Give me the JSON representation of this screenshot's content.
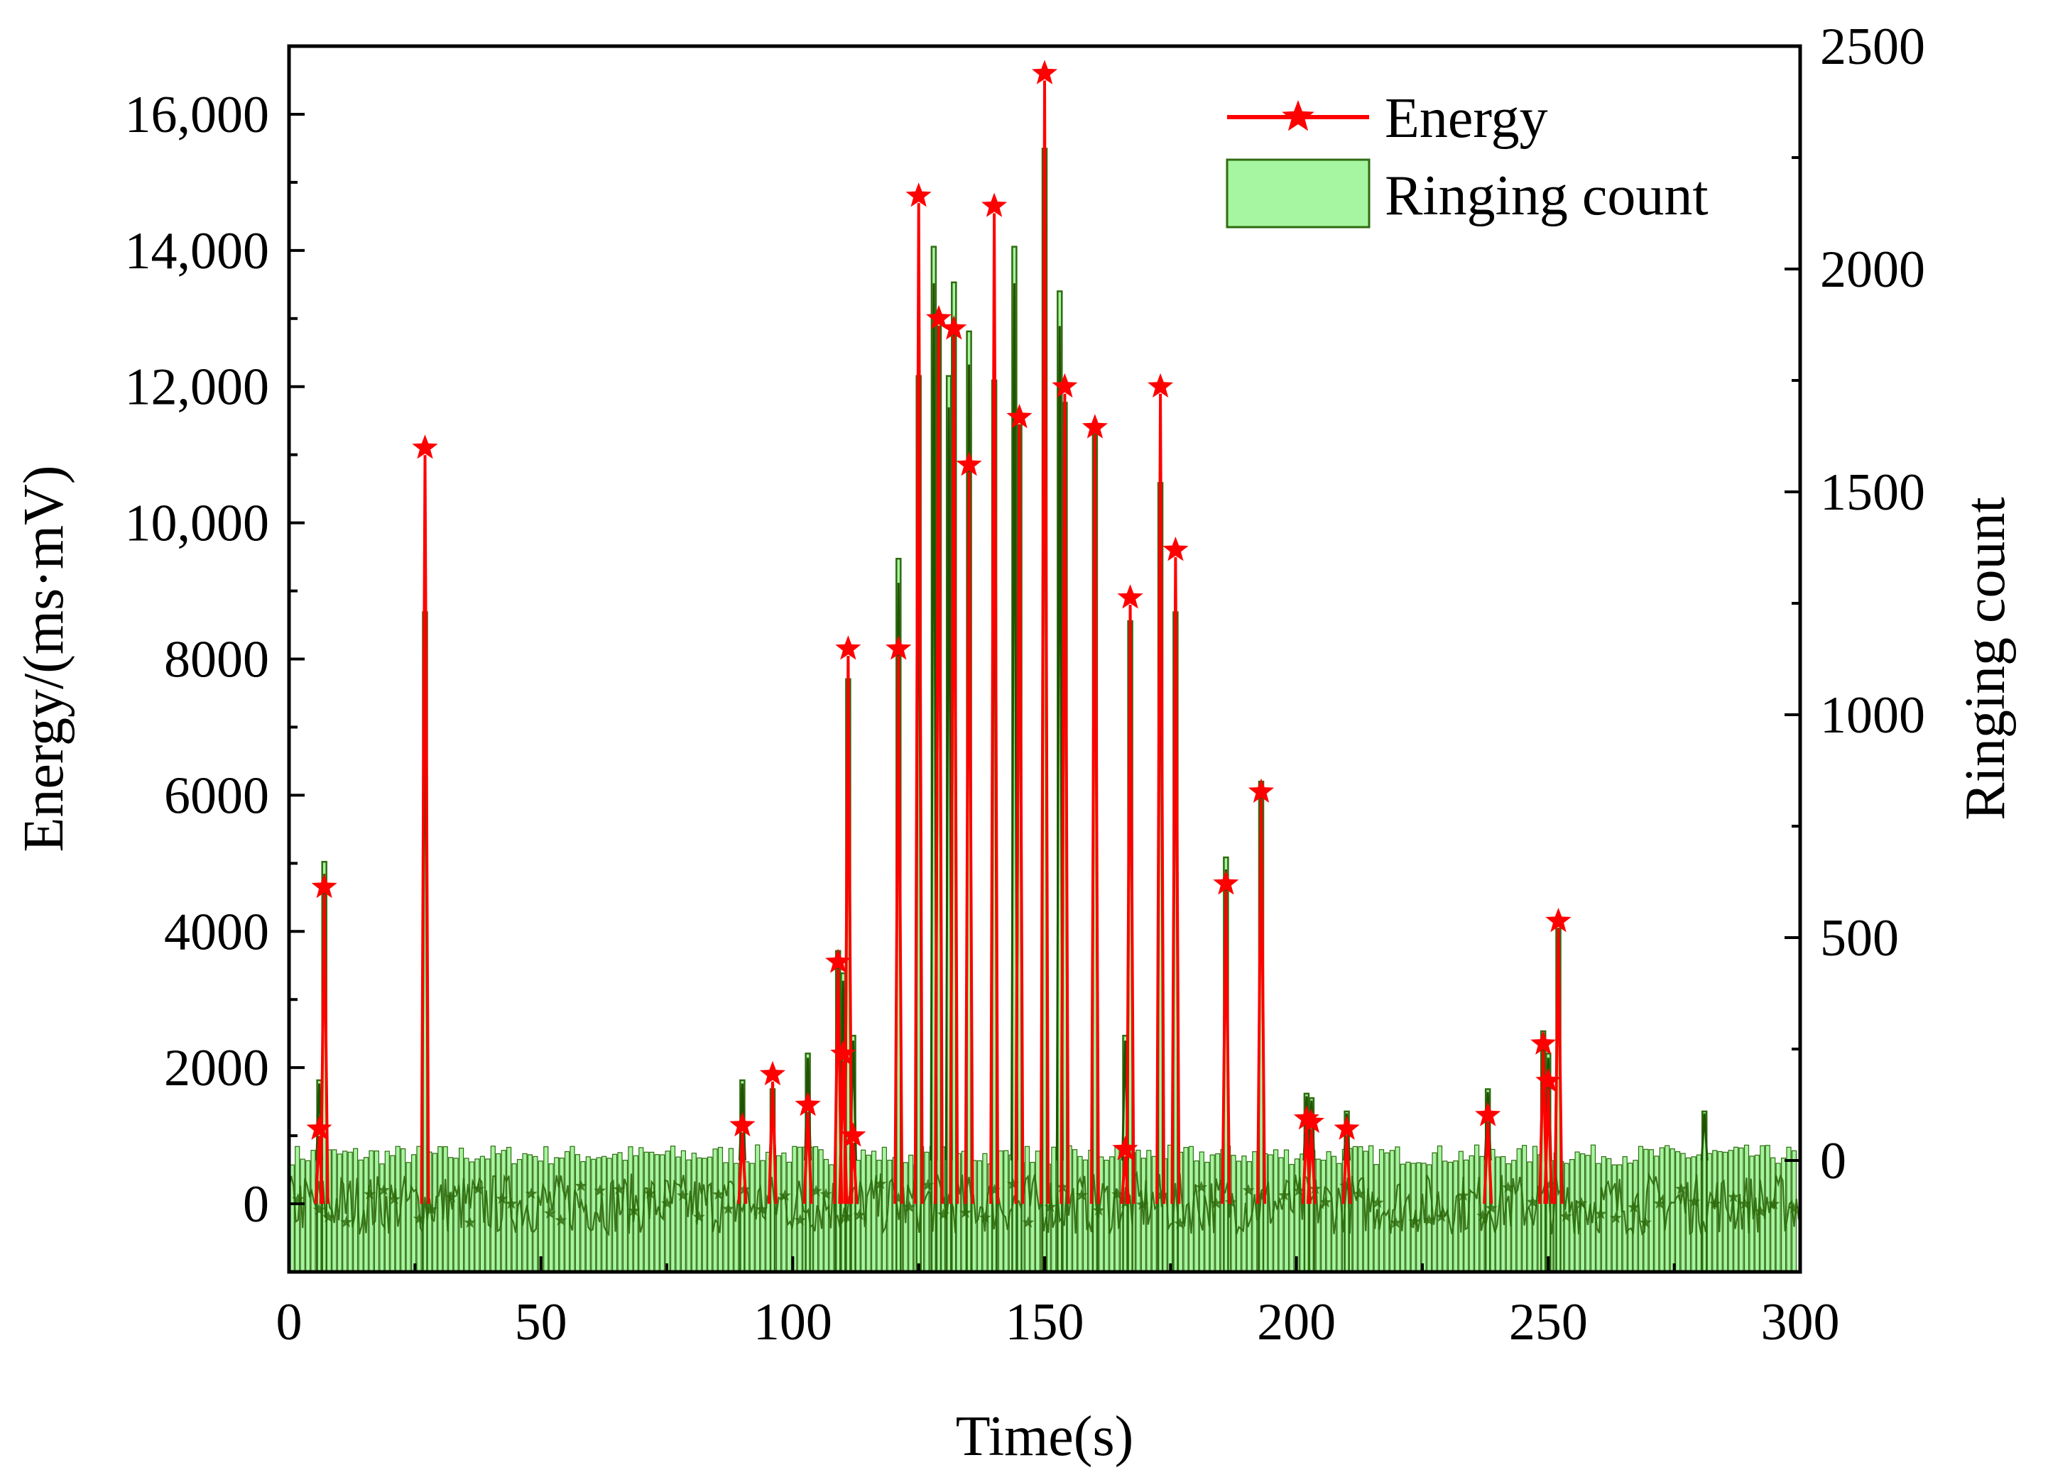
{
  "chart_data": {
    "type": "line+bar",
    "xlabel": "Time(s)",
    "ylabel_left": "Energy/(ms·mV)",
    "ylabel_right": "Ringing count",
    "xlim": [
      0,
      300
    ],
    "ylim_left": [
      -1000,
      17000
    ],
    "ylim_right": [
      -250,
      2500
    ],
    "x_ticks": [
      0,
      50,
      100,
      150,
      200,
      250,
      300
    ],
    "x_tick_labels": [
      "0",
      "50",
      "100",
      "150",
      "200",
      "250",
      "300"
    ],
    "y_left_ticks": [
      0,
      2000,
      4000,
      6000,
      8000,
      10000,
      12000,
      14000,
      16000
    ],
    "y_left_tick_labels": [
      "0",
      "2000",
      "4000",
      "6000",
      "8000",
      "10,000",
      "12,000",
      "14,000",
      "16,000"
    ],
    "y_right_ticks": [
      0,
      500,
      1000,
      1500,
      2000,
      2500
    ],
    "y_right_tick_labels": [
      "0",
      "500",
      "1000",
      "1500",
      "2000",
      "2500"
    ],
    "legend": [
      {
        "label": "Energy",
        "style": "line-star",
        "color": "#ff0000"
      },
      {
        "label": "Ringing count",
        "style": "bar",
        "color": "#a6f5a0"
      }
    ],
    "legend_position": "top-right",
    "colors": {
      "energy": "#ff0000",
      "bar_fill": "#a6f5a0",
      "bar_edge": "#2f6b10",
      "noise": "#2d6a0a"
    },
    "series": [
      {
        "name": "Energy",
        "axis": "left",
        "x": [
          6,
          7,
          27,
          90,
          96,
          103,
          109,
          110,
          111,
          112,
          121,
          125,
          129,
          132,
          135,
          145,
          140,
          150,
          154,
          160,
          166,
          167,
          173,
          176,
          186,
          193,
          202,
          203,
          210,
          238,
          249,
          250,
          252
        ],
        "y": [
          1100,
          4650,
          11100,
          1150,
          1900,
          1450,
          3550,
          2200,
          8150,
          1000,
          8150,
          14800,
          13000,
          12850,
          10850,
          11550,
          14650,
          16600,
          12000,
          11400,
          800,
          8900,
          12000,
          9600,
          4700,
          6050,
          1250,
          1200,
          1100,
          1300,
          2350,
          1800,
          4150
        ]
      },
      {
        "name": "Ringing count",
        "axis": "right",
        "x": [
          6,
          7,
          27,
          90,
          96,
          103,
          109,
          110,
          111,
          112,
          121,
          125,
          128,
          129,
          131,
          132,
          135,
          140,
          144,
          145,
          150,
          153,
          154,
          160,
          166,
          167,
          173,
          176,
          186,
          193,
          202,
          203,
          210,
          238,
          249,
          250,
          252,
          281
        ],
        "y": [
          180,
          670,
          1230,
          180,
          160,
          240,
          470,
          420,
          1080,
          280,
          1350,
          1760,
          2050,
          1900,
          1760,
          1970,
          1860,
          1750,
          2050,
          1650,
          2270,
          1950,
          1700,
          1630,
          280,
          1210,
          1520,
          1230,
          680,
          850,
          150,
          140,
          110,
          160,
          290,
          240,
          520,
          110
        ],
        "baseline": 0
      }
    ]
  }
}
